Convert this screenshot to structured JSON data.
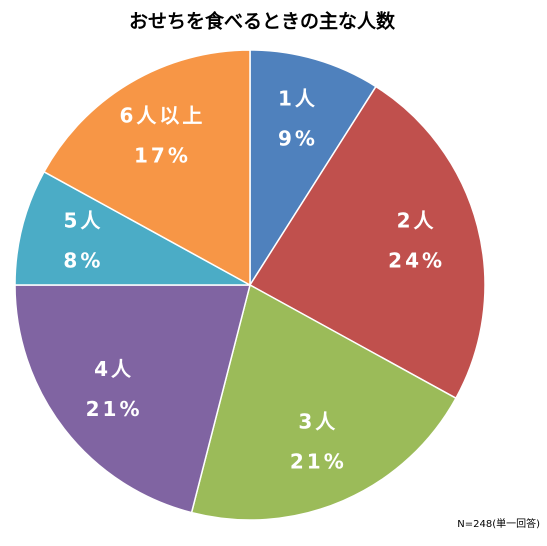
{
  "chart_data": {
    "type": "pie",
    "title": "おせちを食べるときの主な人数",
    "categories": [
      "1人",
      "2人",
      "3人",
      "4人",
      "5人",
      "6人以上"
    ],
    "values": [
      9,
      24,
      21,
      21,
      8,
      17
    ],
    "value_labels": [
      "9%",
      "24%",
      "21%",
      "21%",
      "8%",
      "17%"
    ],
    "colors": [
      "#4f81bd",
      "#c0504d",
      "#9bbb59",
      "#8064a2",
      "#4bacc6",
      "#f79646"
    ],
    "note": "N=248(単一回答)"
  }
}
